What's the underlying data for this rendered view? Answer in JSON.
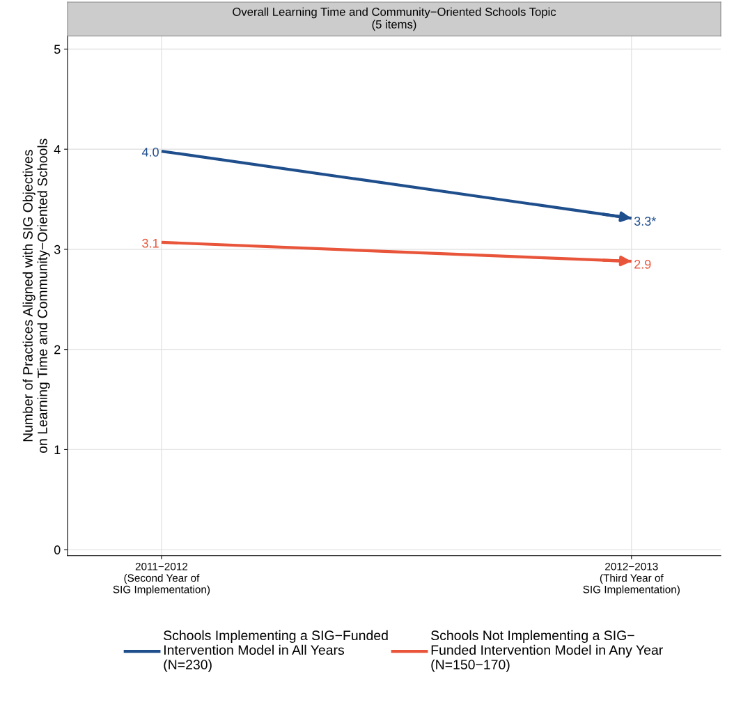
{
  "chart_data": {
    "type": "line",
    "title": "Overall Learning Time and Community−Oriented Schools Topic\n(5 items)",
    "ylabel": "Number of Practices Aligned with SIG Objectives\non Learning Time and Community−Oriented Schools",
    "categories": [
      "2011−2012\n(Second Year of\nSIG Implementation)",
      "2012−2013\n(Third Year of\nSIG Implementation)"
    ],
    "series": [
      {
        "name": "Schools Implementing a SIG−Funded\nIntervention Model in All Years\n(N=230)",
        "color": "#1f4e8c",
        "values": [
          3.98,
          3.31
        ],
        "value_labels": [
          "4.0",
          "3.3*"
        ]
      },
      {
        "name": "Schools Not Implementing a SIG−\nFunded Intervention Model in Any Year\n(N=150−170)",
        "color": "#e8553a",
        "values": [
          3.07,
          2.88
        ],
        "value_labels": [
          "3.1",
          "2.9"
        ]
      }
    ],
    "ylim": [
      -0.06,
      5.13
    ],
    "yticks": [
      0,
      1,
      2,
      3,
      4,
      5
    ],
    "grid": true,
    "legend": "bottom",
    "line_style": "solid"
  }
}
